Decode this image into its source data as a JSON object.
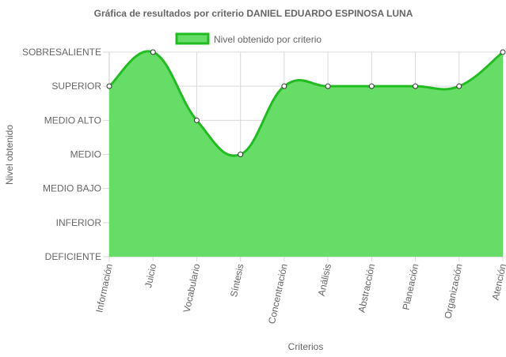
{
  "chart_data": {
    "type": "area",
    "title": "Gráfica de resultados por criterio DANIEL EDUARDO ESPINOSA LUNA",
    "xlabel": "Criterios",
    "ylabel": "Nivel obtenido",
    "categories": [
      "Información",
      "Juicio",
      "Vocabulario",
      "Síntesis",
      "Concentración",
      "Análisis",
      "Abstracción",
      "Planeación",
      "Organización",
      "Atención"
    ],
    "y_levels": [
      "DEFICIENTE",
      "INFERIOR",
      "MEDIO BAJO",
      "MEDIO",
      "MEDIO ALTO",
      "SUPERIOR",
      "SOBRESALIENTE"
    ],
    "ylim": [
      0,
      6
    ],
    "grid": true,
    "legend_position": "top",
    "series": [
      {
        "name": "Nivel obtenido por criterio",
        "values": [
          5,
          6,
          4,
          3,
          5,
          5,
          5,
          5,
          5,
          6
        ],
        "fill_color": "#66dd66",
        "line_color": "#22bb22"
      }
    ]
  }
}
